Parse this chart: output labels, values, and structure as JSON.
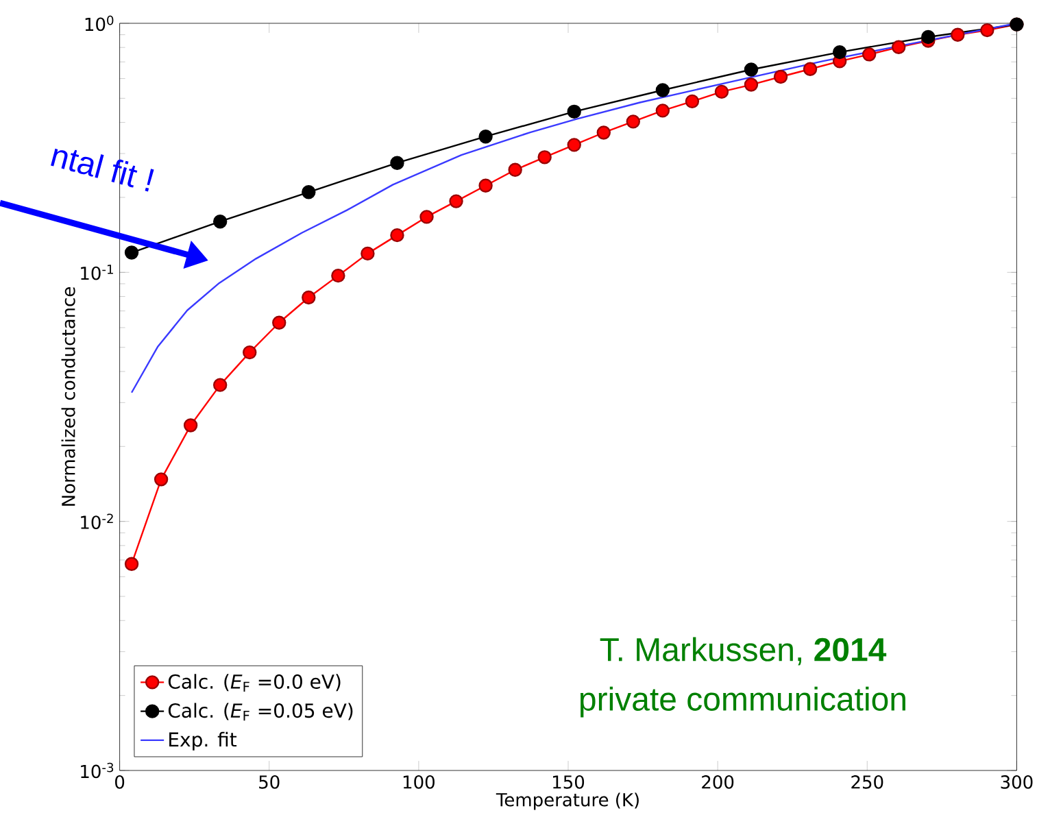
{
  "chart_data": {
    "type": "line",
    "xlabel": "Temperature  (K)",
    "ylabel": "Normalized conductance",
    "xlim": [
      0,
      300
    ],
    "ylim": [
      0.001,
      1
    ],
    "log": "y",
    "legend": "bottom left",
    "grid": false,
    "xticks": [
      0,
      50,
      100,
      150,
      200,
      250,
      300
    ],
    "yticks": [
      {
        "value": 0.001,
        "label": "10$^{-3}$"
      },
      {
        "value": 0.01,
        "label": "10$^{-2}$"
      },
      {
        "value": 0.1,
        "label": "10$^{-1}$"
      },
      {
        "value": 1,
        "label": "10$^{0}$"
      }
    ],
    "annotations": [
      "ntal fit !",
      "T. Markussen, **2014**",
      "private communication"
    ],
    "series": [
      {
        "name": "Calc. (*E*$_{F}$ =0.0 eV)",
        "color": "#ff0000",
        "marker": "circle",
        "x": [
          4,
          13.87,
          23.73,
          33.6,
          43.47,
          53.33,
          63.2,
          73.07,
          82.93,
          92.8,
          102.67,
          112.53,
          122.4,
          132.27,
          142.13,
          152,
          161.87,
          171.73,
          181.6,
          191.47,
          201.33,
          211.2,
          221.07,
          230.93,
          240.8,
          250.67,
          260.53,
          270.4,
          280.27,
          290.13,
          300
        ],
        "values": [
          0.00675,
          0.01475,
          0.0243,
          0.0353,
          0.0477,
          0.0628,
          0.0793,
          0.097,
          0.119,
          0.141,
          0.167,
          0.193,
          0.223,
          0.258,
          0.29,
          0.325,
          0.364,
          0.403,
          0.446,
          0.486,
          0.531,
          0.567,
          0.61,
          0.655,
          0.704,
          0.75,
          0.802,
          0.851,
          0.899,
          0.938,
          0.99
        ]
      },
      {
        "name": "Calc. (*E*$_{F}$ =0.05 eV)",
        "color": "#000000",
        "marker": "circle",
        "x": [
          4,
          33.6,
          63.2,
          92.8,
          122.4,
          152,
          181.6,
          211.2,
          240.8,
          270.4,
          300
        ],
        "values": [
          0.12,
          0.16,
          0.21,
          0.275,
          0.351,
          0.442,
          0.539,
          0.652,
          0.766,
          0.881,
          0.99
        ]
      },
      {
        "name": "Exp. fit",
        "color": "#3a3aff",
        "marker": "none",
        "x": [
          4,
          12.7,
          22.6,
          33.3,
          45.6,
          60.9,
          76.1,
          91.4,
          114.3,
          137.3,
          152.6,
          174,
          204.4,
          235,
          265.7,
          300
        ],
        "values": [
          0.0329,
          0.0502,
          0.0704,
          0.0906,
          0.1135,
          0.144,
          0.178,
          0.225,
          0.296,
          0.365,
          0.412,
          0.481,
          0.582,
          0.704,
          0.833,
          1.0
        ]
      }
    ]
  }
}
